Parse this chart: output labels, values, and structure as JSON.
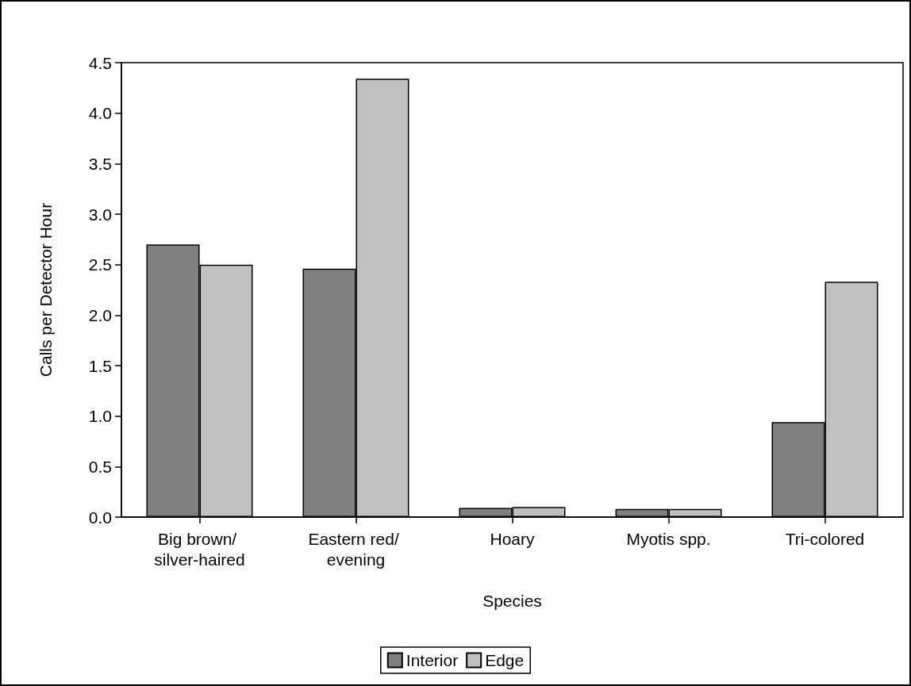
{
  "chart_data": {
    "type": "bar",
    "xlabel": "Species",
    "ylabel": "Calls per Detector Hour",
    "categories": [
      "Big brown/ silver-haired",
      "Eastern red/ evening",
      "Hoary",
      "Myotis spp.",
      "Tri-colored"
    ],
    "series": [
      {
        "name": "Interior",
        "color": "#808080",
        "values": [
          2.7,
          2.46,
          0.09,
          0.08,
          0.94
        ]
      },
      {
        "name": "Edge",
        "color": "#c0c0c0",
        "values": [
          2.5,
          4.34,
          0.1,
          0.08,
          2.33
        ]
      }
    ],
    "ylim": [
      0,
      4.5
    ],
    "yticks": [
      {
        "value": 0,
        "label": "0.0"
      },
      {
        "value": 0.5,
        "label": "0.5"
      },
      {
        "value": 1,
        "label": "1.0"
      },
      {
        "value": 1.5,
        "label": "1.5"
      },
      {
        "value": 2,
        "label": "2.0"
      },
      {
        "value": 2.5,
        "label": "2.5"
      },
      {
        "value": 3,
        "label": "3.0"
      },
      {
        "value": 3.5,
        "label": "3.5"
      },
      {
        "value": 4,
        "label": "4.0"
      },
      {
        "value": 4.5,
        "label": "4.5"
      }
    ],
    "grid": false,
    "legend": "bottom"
  }
}
